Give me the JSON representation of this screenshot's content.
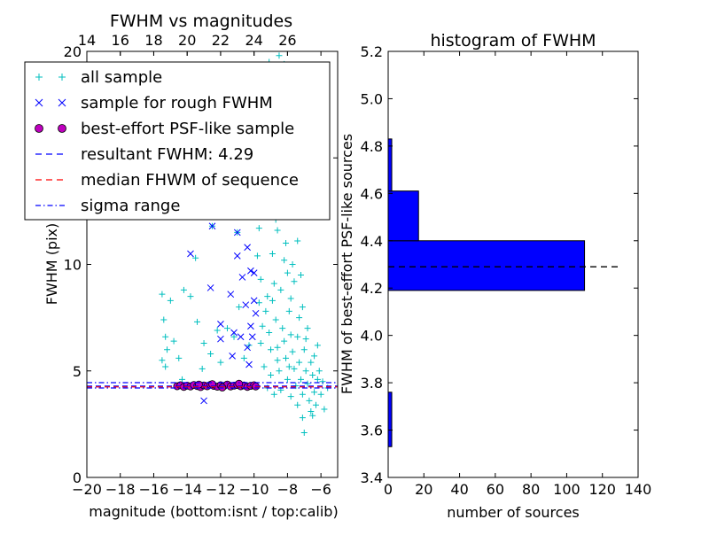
{
  "chart_data": [
    {
      "type": "scatter",
      "title": "FWHM vs magnitudes",
      "xlabel": "magnitude (bottom:isnt / top:calib)",
      "ylabel": "FWHM (pix)",
      "xlim": [
        -20,
        -5
      ],
      "ylim": [
        0,
        20
      ],
      "xticks": [
        -20,
        -18,
        -16,
        -14,
        -12,
        -10,
        -8,
        -6
      ],
      "yticks": [
        0,
        5,
        10,
        15,
        20
      ],
      "top_xticks": [
        14,
        16,
        18,
        20,
        22,
        24,
        26
      ],
      "top_axis_offset": 34.0,
      "legend_position": "upper-left",
      "colors": {
        "all": "#00bfbf",
        "rough": "#0000ff",
        "best": "#bf00bf",
        "resultant": "#0000ff",
        "median": "#ff0000",
        "sigma": "#0000ff"
      },
      "legend": [
        {
          "label": "all sample",
          "marker": "plus",
          "color": "#00bfbf"
        },
        {
          "label": "sample for rough FWHM",
          "marker": "x",
          "color": "#0000ff"
        },
        {
          "label": "best-effort PSF-like sample",
          "marker": "circle",
          "color": "#bf00bf"
        },
        {
          "label": "resultant FWHM: 4.29",
          "marker": "dashed",
          "color": "#0000ff"
        },
        {
          "label": "median FHWM of sequence",
          "marker": "dashed",
          "color": "#ff0000"
        },
        {
          "label": "sigma range",
          "marker": "dashdot",
          "color": "#0000ff"
        }
      ],
      "lines": {
        "resultant_fwhm": 4.29,
        "median_fwhm": 4.29,
        "sigma_range": [
          4.2,
          4.45
        ]
      },
      "series": {
        "all_sample": [
          [
            -15.5,
            8.6
          ],
          [
            -15.4,
            7.4
          ],
          [
            -15.3,
            6.6
          ],
          [
            -15.2,
            6.0
          ],
          [
            -15.5,
            5.5
          ],
          [
            -15.3,
            5.2
          ],
          [
            -15.0,
            8.3
          ],
          [
            -14.8,
            6.4
          ],
          [
            -14.5,
            5.6
          ],
          [
            -14.2,
            8.8
          ],
          [
            -13.8,
            8.5
          ],
          [
            -13.4,
            7.3
          ],
          [
            -13.0,
            6.3
          ],
          [
            -12.6,
            5.8
          ],
          [
            -12.2,
            6.9
          ],
          [
            -14.3,
            4.6
          ],
          [
            -13.1,
            5.1
          ],
          [
            -12.0,
            5.4
          ],
          [
            -11.6,
            7.0
          ],
          [
            -11.2,
            6.6
          ],
          [
            -10.6,
            5.6
          ],
          [
            -10.3,
            6.2
          ],
          [
            -11.0,
            11.5
          ],
          [
            -10.9,
            8.0
          ],
          [
            -12.5,
            11.8
          ],
          [
            -13.5,
            10.3
          ],
          [
            -9.7,
            11.7
          ],
          [
            -9.6,
            9.3
          ],
          [
            -9.5,
            7.1
          ],
          [
            -9.4,
            5.2
          ],
          [
            -9.3,
            12.6
          ],
          [
            -9.2,
            8.5
          ],
          [
            -9.1,
            6.8
          ],
          [
            -9.0,
            4.8
          ],
          [
            -8.9,
            10.5
          ],
          [
            -8.8,
            9.1
          ],
          [
            -8.7,
            7.4
          ],
          [
            -8.6,
            6.1
          ],
          [
            -8.5,
            5.0
          ],
          [
            -8.4,
            8.8
          ],
          [
            -8.3,
            7.0
          ],
          [
            -8.2,
            6.4
          ],
          [
            -8.1,
            5.6
          ],
          [
            -8.0,
            4.6
          ],
          [
            -7.9,
            7.8
          ],
          [
            -7.8,
            6.7
          ],
          [
            -7.7,
            5.9
          ],
          [
            -7.6,
            5.1
          ],
          [
            -7.5,
            4.3
          ],
          [
            -7.4,
            6.6
          ],
          [
            -7.3,
            5.4
          ],
          [
            -7.2,
            4.6
          ],
          [
            -7.1,
            3.9
          ],
          [
            -7.0,
            6.0
          ],
          [
            -6.9,
            5.0
          ],
          [
            -6.8,
            4.4
          ],
          [
            -6.7,
            3.6
          ],
          [
            -6.6,
            5.4
          ],
          [
            -6.5,
            4.8
          ],
          [
            -6.4,
            4.0
          ],
          [
            -6.3,
            3.4
          ],
          [
            -6.2,
            4.6
          ],
          [
            -6.0,
            3.9
          ],
          [
            -5.8,
            3.2
          ],
          [
            -5.6,
            4.2
          ],
          [
            -7.1,
            2.8
          ],
          [
            -7.0,
            2.1
          ],
          [
            -6.5,
            2.9
          ],
          [
            -8.6,
            11.6
          ],
          [
            -8.2,
            10.2
          ],
          [
            -7.6,
            9.2
          ],
          [
            -7.1,
            8.0
          ],
          [
            -6.8,
            7.0
          ],
          [
            -6.2,
            6.2
          ],
          [
            -9.0,
            13.4
          ],
          [
            -8.8,
            14.6
          ],
          [
            -9.4,
            17.0
          ],
          [
            -8.5,
            19.8
          ],
          [
            -8.2,
            19.4
          ],
          [
            -9.1,
            19.5
          ],
          [
            -9.6,
            15.6
          ],
          [
            -8.3,
            15.8
          ],
          [
            -7.9,
            13.1
          ],
          [
            -7.4,
            11.1
          ],
          [
            -9.3,
            14.2
          ],
          [
            -8.7,
            12.1
          ],
          [
            -9.8,
            10.4
          ],
          [
            -9.7,
            8.2
          ],
          [
            -9.6,
            6.3
          ],
          [
            -8.0,
            9.6
          ],
          [
            -7.8,
            8.4
          ],
          [
            -7.3,
            7.5
          ],
          [
            -6.9,
            6.5
          ],
          [
            -6.4,
            5.7
          ],
          [
            -6.1,
            5.0
          ],
          [
            -5.9,
            4.5
          ],
          [
            -8.4,
            4.1
          ],
          [
            -7.8,
            3.8
          ],
          [
            -7.4,
            3.4
          ],
          [
            -9.2,
            4.2
          ],
          [
            -8.8,
            3.9
          ],
          [
            -6.6,
            3.1
          ],
          [
            -7.9,
            5.2
          ],
          [
            -8.6,
            5.5
          ],
          [
            -9.0,
            6.0
          ],
          [
            -9.3,
            7.8
          ],
          [
            -8.9,
            8.3
          ],
          [
            -8.1,
            11.0
          ],
          [
            -7.7,
            10.0
          ],
          [
            -7.2,
            9.5
          ],
          [
            -8.5,
            16.5
          ],
          [
            -8.9,
            17.8
          ],
          [
            -9.5,
            18.6
          ],
          [
            -8.4,
            18.0
          ]
        ],
        "rough_sample": [
          [
            -15.1,
            16.2
          ],
          [
            -13.6,
            15.6
          ],
          [
            -12.5,
            11.8
          ],
          [
            -11.5,
            12.6
          ],
          [
            -11.0,
            11.5
          ],
          [
            -13.8,
            10.5
          ],
          [
            -12.6,
            8.9
          ],
          [
            -12.0,
            7.2
          ],
          [
            -11.4,
            8.6
          ],
          [
            -11.0,
            10.4
          ],
          [
            -10.7,
            9.4
          ],
          [
            -10.4,
            10.8
          ],
          [
            -10.2,
            9.7
          ],
          [
            -10.5,
            8.1
          ],
          [
            -10.8,
            6.6
          ],
          [
            -11.2,
            6.8
          ],
          [
            -12.0,
            6.5
          ],
          [
            -11.3,
            5.7
          ],
          [
            -13.0,
            3.6
          ],
          [
            -10.4,
            6.1
          ],
          [
            -10.2,
            7.1
          ],
          [
            -10.0,
            8.3
          ],
          [
            -10.1,
            6.6
          ],
          [
            -10.3,
            5.3
          ],
          [
            -9.9,
            7.7
          ],
          [
            -10.0,
            9.6
          ],
          [
            -10.3,
            12.4
          ]
        ],
        "best_sample": [
          [
            -14.6,
            4.28
          ],
          [
            -14.4,
            4.33
          ],
          [
            -14.2,
            4.25
          ],
          [
            -14.0,
            4.31
          ],
          [
            -13.8,
            4.27
          ],
          [
            -13.6,
            4.34
          ],
          [
            -13.4,
            4.29
          ],
          [
            -13.2,
            4.24
          ],
          [
            -13.0,
            4.32
          ],
          [
            -12.8,
            4.28
          ],
          [
            -12.6,
            4.35
          ],
          [
            -12.4,
            4.3
          ],
          [
            -12.2,
            4.26
          ],
          [
            -12.0,
            4.33
          ],
          [
            -11.8,
            4.29
          ],
          [
            -11.6,
            4.36
          ],
          [
            -11.4,
            4.27
          ],
          [
            -11.2,
            4.31
          ],
          [
            -11.0,
            4.34
          ],
          [
            -10.8,
            4.28
          ],
          [
            -10.6,
            4.32
          ],
          [
            -10.4,
            4.25
          ],
          [
            -10.2,
            4.3
          ],
          [
            -10.0,
            4.33
          ],
          [
            -9.9,
            4.27
          ],
          [
            -12.5,
            4.38
          ],
          [
            -11.9,
            4.22
          ],
          [
            -13.3,
            4.36
          ],
          [
            -10.9,
            4.4
          ]
        ]
      }
    },
    {
      "type": "bar",
      "orientation": "horizontal",
      "title": "histogram of FWHM",
      "xlabel": "number of sources",
      "ylabel": "FWHM of best-effort PSF-like sources",
      "xlim": [
        0,
        140
      ],
      "ylim": [
        3.4,
        5.2
      ],
      "xticks": [
        0,
        20,
        40,
        60,
        80,
        100,
        120,
        140
      ],
      "yticks": [
        3.4,
        3.6,
        3.8,
        4.0,
        4.2,
        4.4,
        4.6,
        4.8,
        5.0,
        5.2
      ],
      "bar_color": "#0000ff",
      "bins": [
        {
          "low": 3.53,
          "high": 3.76,
          "count": 2
        },
        {
          "low": 3.76,
          "high": 3.99,
          "count": 0
        },
        {
          "low": 3.99,
          "high": 4.19,
          "count": 0
        },
        {
          "low": 4.19,
          "high": 4.4,
          "count": 110
        },
        {
          "low": 4.4,
          "high": 4.61,
          "count": 17
        },
        {
          "low": 4.61,
          "high": 4.83,
          "count": 2
        }
      ],
      "reference_line": {
        "y": 4.29,
        "x_range": [
          0,
          130
        ],
        "style": "dashed",
        "color": "#000000"
      }
    }
  ]
}
